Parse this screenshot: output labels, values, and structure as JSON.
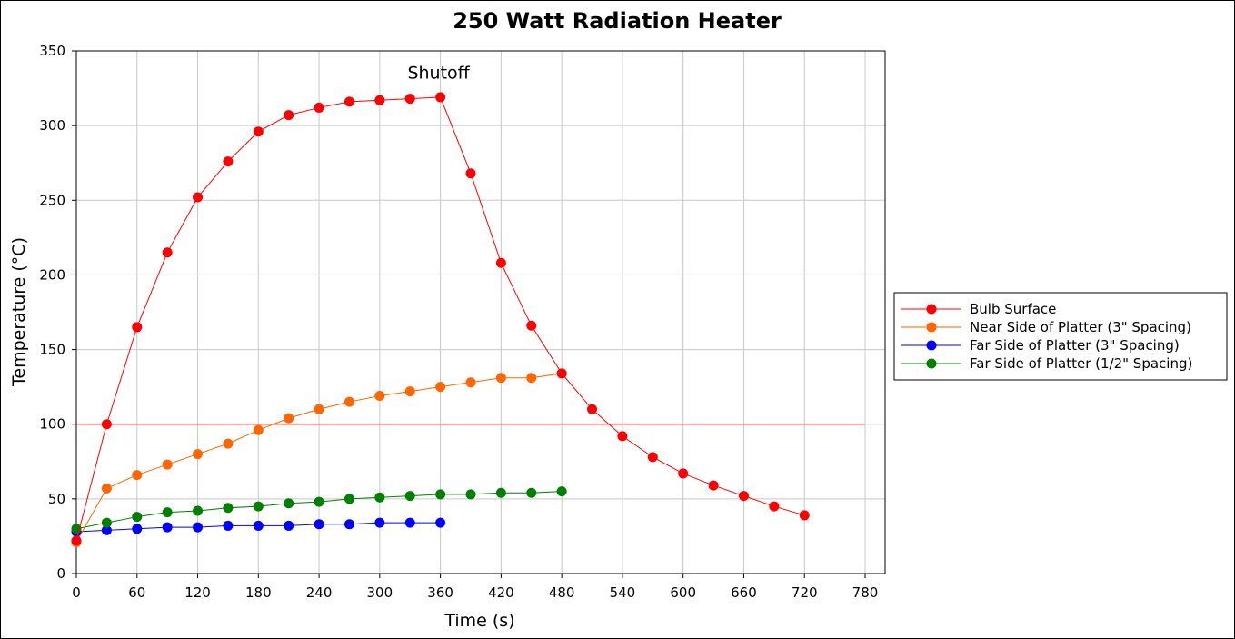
{
  "chart_data": {
    "type": "line",
    "title": "250 Watt Radiation Heater",
    "xlabel": "Time (s)",
    "ylabel": "Temperature (°C)",
    "xlim": [
      0,
      780
    ],
    "ylim": [
      0,
      350
    ],
    "xticks": [
      0,
      60,
      120,
      180,
      240,
      300,
      360,
      420,
      480,
      540,
      600,
      660,
      720,
      780
    ],
    "yticks": [
      0,
      50,
      100,
      150,
      200,
      250,
      300,
      350
    ],
    "grid": true,
    "legend_position": "right",
    "annotations": [
      {
        "text": "Shutoff",
        "x": 360,
        "y": 335
      }
    ],
    "reference_line": {
      "y": 100,
      "color": "#ff0000"
    },
    "series": [
      {
        "name": "Bulb Surface",
        "color": "#ff0000",
        "x": [
          0,
          30,
          60,
          90,
          120,
          150,
          180,
          210,
          240,
          270,
          300,
          330,
          360,
          390,
          420,
          450,
          480,
          510,
          540,
          570,
          600,
          630,
          660,
          690,
          720
        ],
        "values": [
          22,
          100,
          165,
          215,
          252,
          276,
          296,
          307,
          312,
          316,
          317,
          318,
          319,
          268,
          208,
          166,
          134,
          110,
          92,
          78,
          67,
          59,
          52,
          45,
          39
        ]
      },
      {
        "name": "Near Side of Platter (3\" Spacing)",
        "color": "#ff6600",
        "x": [
          0,
          30,
          60,
          90,
          120,
          150,
          180,
          210,
          240,
          270,
          300,
          330,
          360,
          390,
          420,
          450,
          480
        ],
        "values": [
          21,
          57,
          66,
          73,
          80,
          87,
          96,
          104,
          110,
          115,
          119,
          122,
          125,
          128,
          131,
          131,
          134
        ]
      },
      {
        "name": "Far Side of Platter (3\" Spacing)",
        "color": "#0000ff",
        "x": [
          0,
          30,
          60,
          90,
          120,
          150,
          180,
          210,
          240,
          270,
          300,
          330,
          360
        ],
        "values": [
          28,
          29,
          30,
          31,
          31,
          32,
          32,
          32,
          33,
          33,
          34,
          34,
          34
        ]
      },
      {
        "name": "Far Side of Platter (1/2\" Spacing)",
        "color": "#008000",
        "x": [
          0,
          30,
          60,
          90,
          120,
          150,
          180,
          210,
          240,
          270,
          300,
          330,
          360,
          390,
          420,
          450,
          480
        ],
        "values": [
          30,
          34,
          38,
          41,
          42,
          44,
          45,
          47,
          48,
          50,
          51,
          52,
          53,
          53,
          54,
          54,
          55
        ]
      }
    ]
  }
}
